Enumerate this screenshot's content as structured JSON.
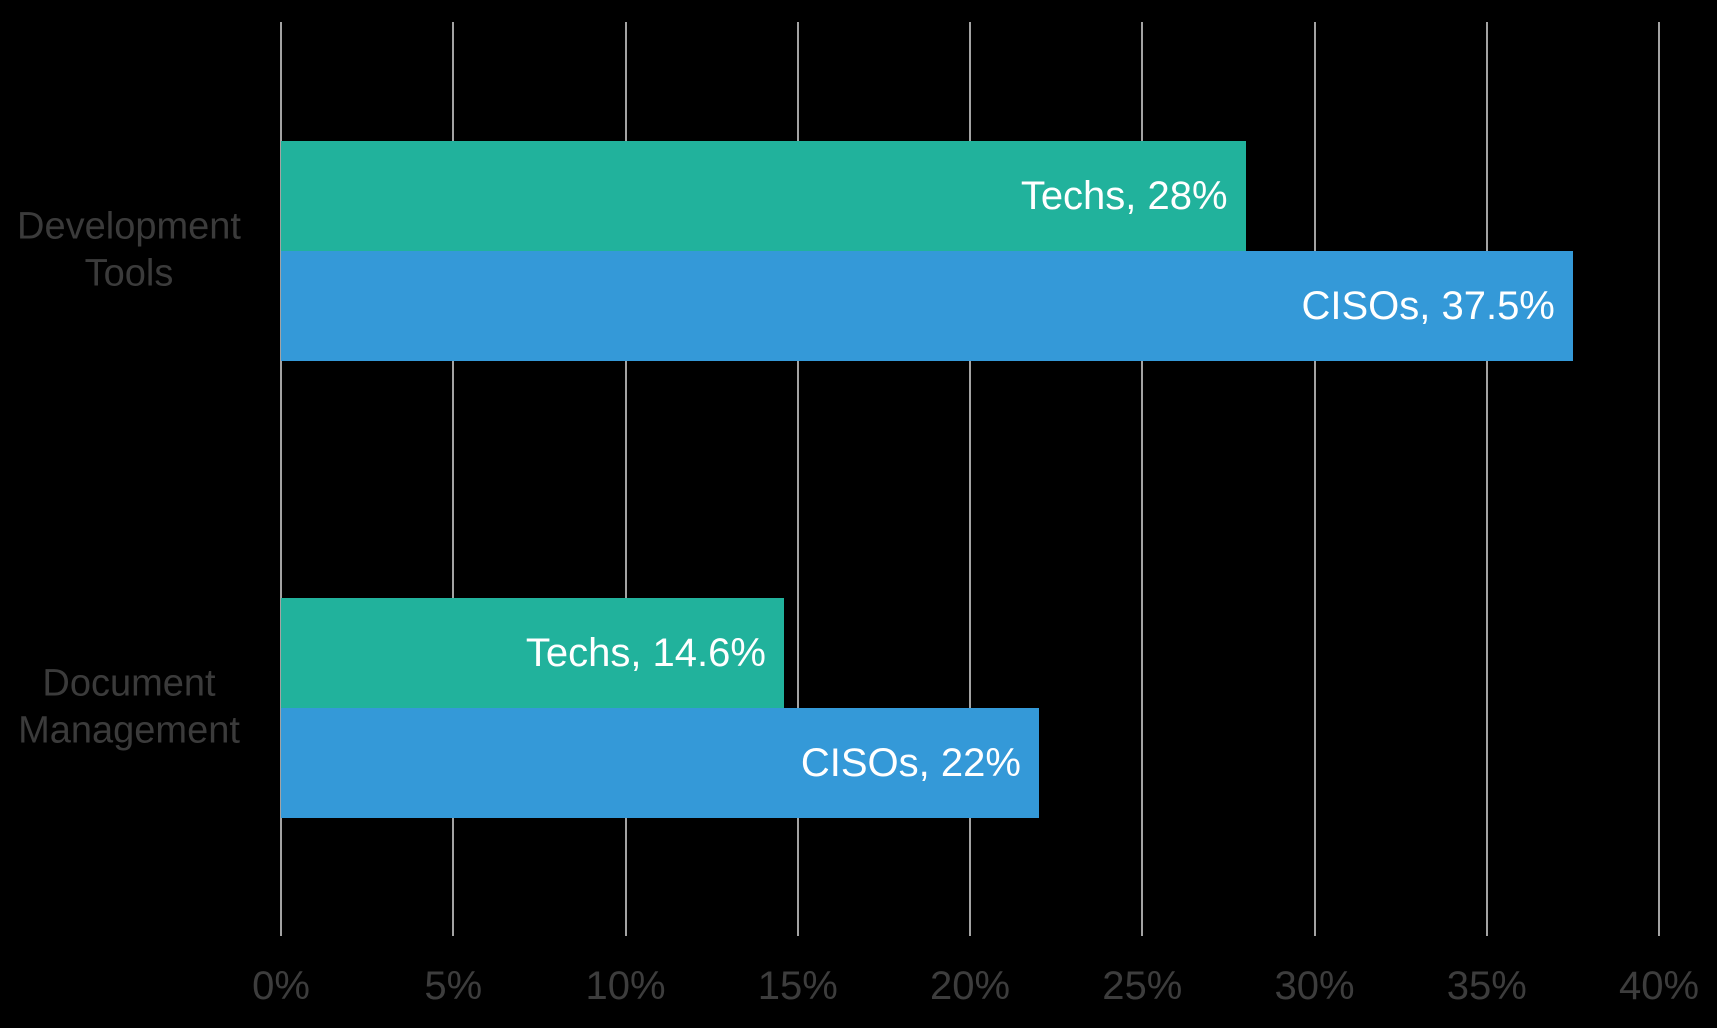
{
  "chart_data": {
    "type": "bar",
    "orientation": "horizontal",
    "title": "",
    "categories": [
      "Development Tools",
      "Document Management"
    ],
    "series": [
      {
        "name": "Techs",
        "color": "#21b29c",
        "values": [
          28,
          14.6
        ],
        "data_labels": [
          "Techs, 28%",
          "Techs, 14.6%"
        ]
      },
      {
        "name": "CISOs",
        "color": "#3499d8",
        "values": [
          37.5,
          22
        ],
        "data_labels": [
          "CISOs, 37.5%",
          "CISOs, 22%"
        ]
      }
    ],
    "x_axis": {
      "min": 0,
      "max": 40,
      "step": 5,
      "tick_labels": [
        "0%",
        "5%",
        "10%",
        "15%",
        "20%",
        "25%",
        "30%",
        "35%",
        "40%"
      ],
      "grid": true
    },
    "legend": "none",
    "layout_hints": {
      "background_color": "#000000",
      "gridline_color": "#a3a3a3",
      "category_label_color": "#3b3b3b",
      "tick_label_color": "#3d3d3d",
      "data_label_color": "#ffffff",
      "data_label_position": "inside-end"
    }
  }
}
